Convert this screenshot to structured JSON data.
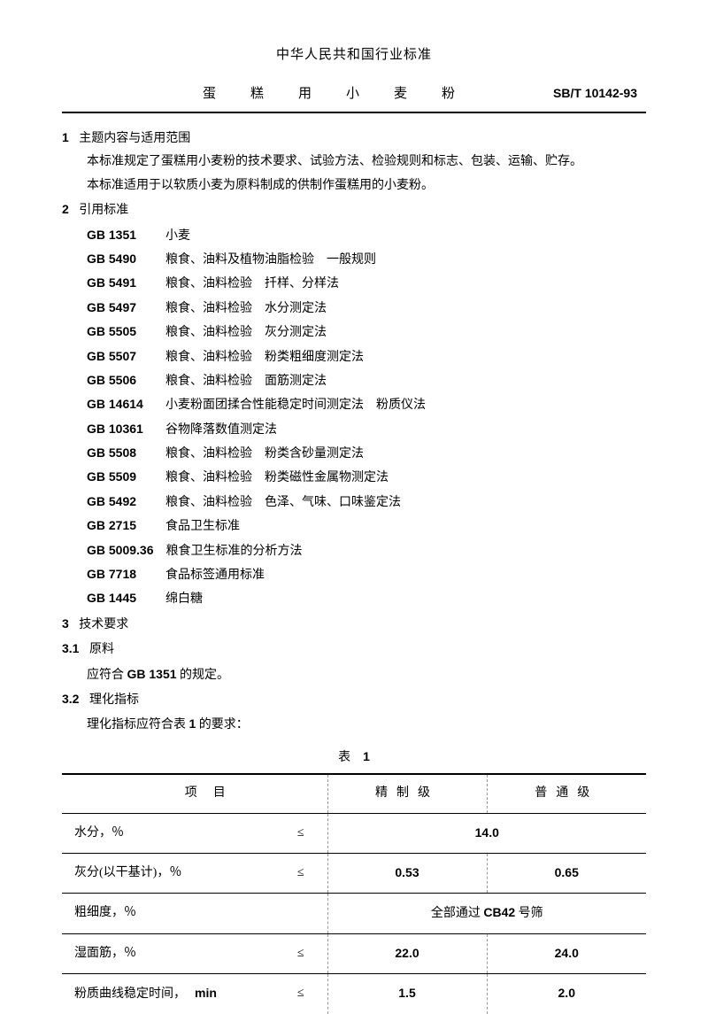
{
  "header": {
    "title": "中华人民共和国行业标准",
    "subtitle": "蛋　糕　用　小　麦　粉",
    "standardCode": "SB/T 10142-93"
  },
  "section1": {
    "num": "1",
    "title": "主题内容与适用范围",
    "para1": "本标准规定了蛋糕用小麦粉的技术要求、试验方法、检验规则和标志、包装、运输、贮存。",
    "para2": "本标准适用于以软质小麦为原料制成的供制作蛋糕用的小麦粉。"
  },
  "section2": {
    "num": "2",
    "title": "引用标准",
    "refs": [
      {
        "code": "GB 1351",
        "desc": "小麦"
      },
      {
        "code": "GB 5490",
        "desc": "粮食、油料及植物油脂检验　一般规则"
      },
      {
        "code": "GB 5491",
        "desc": "粮食、油料检验　扦样、分样法"
      },
      {
        "code": "GB 5497",
        "desc": "粮食、油料检验　水分测定法"
      },
      {
        "code": "GB 5505",
        "desc": "粮食、油料检验　灰分测定法"
      },
      {
        "code": "GB 5507",
        "desc": "粮食、油料检验　粉类粗细度测定法"
      },
      {
        "code": "GB 5506",
        "desc": "粮食、油料检验　面筋测定法"
      },
      {
        "code": "GB 14614",
        "desc": "小麦粉面团揉合性能稳定时间测定法　粉质仪法"
      },
      {
        "code": "GB 10361",
        "desc": "谷物降落数值测定法"
      },
      {
        "code": "GB 5508",
        "desc": "粮食、油料检验　粉类含砂量测定法"
      },
      {
        "code": "GB 5509",
        "desc": "粮食、油料检验　粉类磁性金属物测定法"
      },
      {
        "code": "GB 5492",
        "desc": "粮食、油料检验　色泽、气味、口味鉴定法"
      },
      {
        "code": "GB 2715",
        "desc": "食品卫生标准"
      },
      {
        "code": "GB 5009.36",
        "desc": "粮食卫生标准的分析方法"
      },
      {
        "code": "GB 7718",
        "desc": "食品标签通用标准"
      },
      {
        "code": "GB 1445",
        "desc": "绵白糖"
      }
    ]
  },
  "section3": {
    "num": "3",
    "title": "技术要求",
    "sub31": {
      "num": "3.1",
      "title": "原料",
      "text": "应符合 GB 1351 的规定。",
      "gbRef": "GB 1351"
    },
    "sub32": {
      "num": "3.2",
      "title": "理化指标",
      "text": "理化指标应符合表 1 的要求：",
      "tableRef": "1"
    }
  },
  "table1": {
    "caption": "表　1",
    "headers": {
      "item": "项目",
      "refined": "精制级",
      "normal": "普通级"
    },
    "rows": [
      {
        "item": "水分，％",
        "op": "≤",
        "refined": "14.0",
        "normal": "",
        "merged": true
      },
      {
        "item": "灰分(以干基计)，％",
        "op": "≤",
        "refined": "0.53",
        "normal": "0.65",
        "merged": false
      },
      {
        "item": "粗细度，％",
        "op": "",
        "refined": "全部通过 CB42 号筛",
        "normal": "",
        "merged": true,
        "textMerged": true
      },
      {
        "item": "湿面筋，％",
        "op": "≤",
        "refined": "22.0",
        "normal": "24.0",
        "merged": false
      },
      {
        "item": "粉质曲线稳定时间，",
        "unit": "min",
        "op": "≤",
        "refined": "1.5",
        "normal": "2.0",
        "merged": false
      }
    ]
  }
}
